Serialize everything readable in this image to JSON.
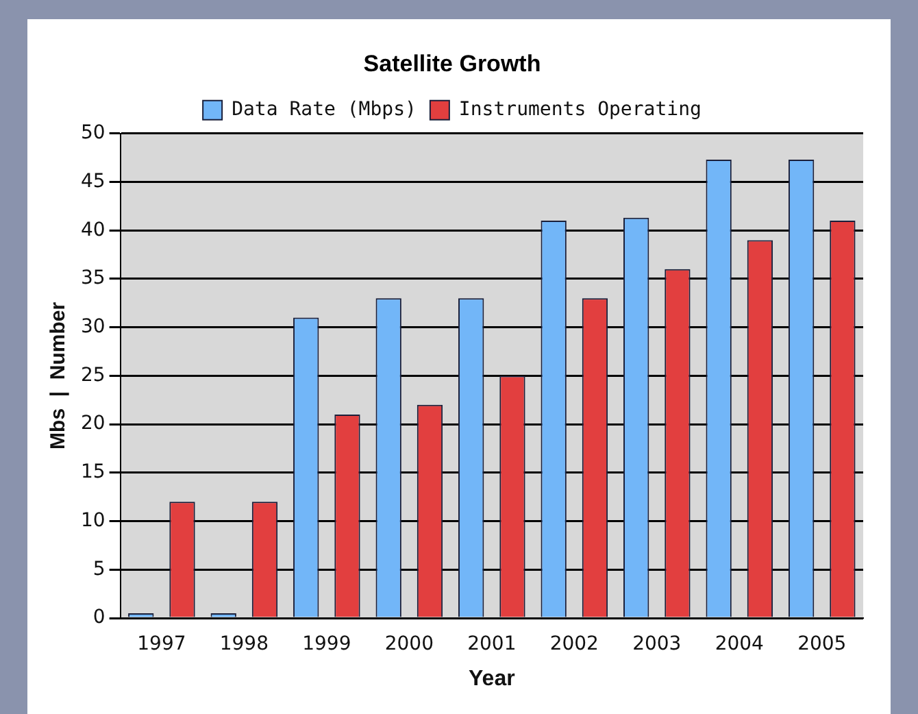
{
  "chart_data": {
    "type": "bar",
    "title": "Satellite Growth",
    "xlabel": "Year",
    "ylabel": "Mbs  |  Number",
    "categories": [
      "1997",
      "1998",
      "1999",
      "2000",
      "2001",
      "2002",
      "2003",
      "2004",
      "2005"
    ],
    "series": [
      {
        "name": "Data Rate (Mbps)",
        "color": "#72b6f8",
        "values": [
          0.5,
          0.5,
          31,
          33,
          33,
          41,
          41.3,
          47.3,
          47.3
        ]
      },
      {
        "name": "Instruments Operating",
        "color": "#e23f3f",
        "values": [
          12,
          12,
          21,
          22,
          25,
          33,
          36,
          39,
          41
        ]
      }
    ],
    "ylim": [
      0,
      50
    ],
    "yticks": [
      0,
      5,
      10,
      15,
      20,
      25,
      30,
      35,
      40,
      45,
      50
    ],
    "grid": "y",
    "legend": "top"
  }
}
